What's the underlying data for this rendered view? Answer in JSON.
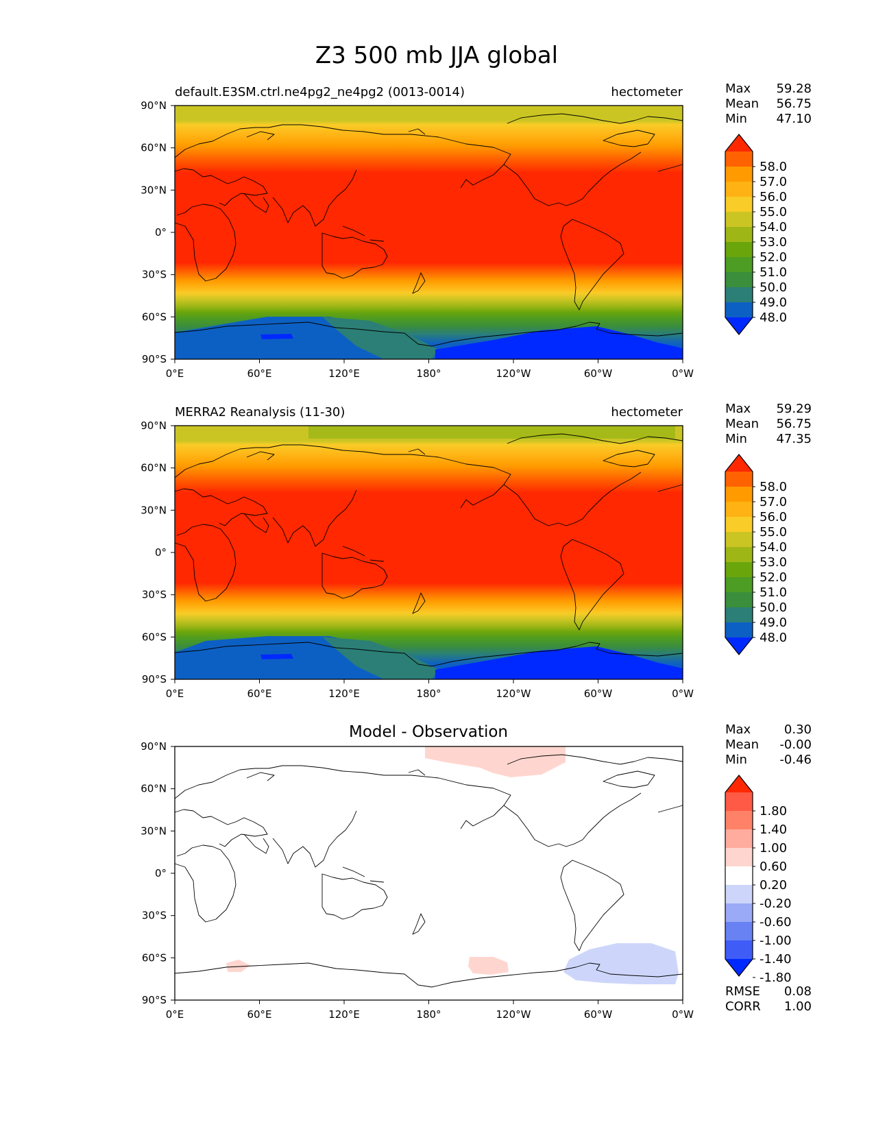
{
  "figure": {
    "title": "Z3 500 mb JJA global"
  },
  "axes": {
    "lat_ticks": [
      "90°N",
      "60°N",
      "30°N",
      "0°",
      "30°S",
      "60°S",
      "90°S"
    ],
    "lon_ticks": [
      "0°E",
      "60°E",
      "120°E",
      "180°",
      "120°W",
      "60°W",
      "0°W"
    ]
  },
  "panels": [
    {
      "id": "model",
      "title": "default.E3SM.ctrl.ne4pg2_ne4pg2 (0013-0014)",
      "units": "hectometer",
      "stats": [
        {
          "label": "Max",
          "value": "59.28"
        },
        {
          "label": "Mean",
          "value": "56.75"
        },
        {
          "label": "Min",
          "value": "47.10"
        }
      ],
      "extra_stats": [],
      "colorbar_labels": [
        "58.0",
        "57.0",
        "56.0",
        "55.0",
        "54.0",
        "53.0",
        "52.0",
        "51.0",
        "50.0",
        "49.0",
        "48.0"
      ],
      "colorbar_colors": [
        "#ff2800",
        "#ff6200",
        "#ff9a00",
        "#ffb213",
        "#f9cc27",
        "#cbc524",
        "#9fb716",
        "#6aa50c",
        "#4d9c23",
        "#3b8e3c",
        "#2b7f76",
        "#0d60c3",
        "#0029ff"
      ]
    },
    {
      "id": "obs",
      "title": "MERRA2 Reanalysis (11-30)",
      "units": "hectometer",
      "stats": [
        {
          "label": "Max",
          "value": "59.29"
        },
        {
          "label": "Mean",
          "value": "56.75"
        },
        {
          "label": "Min",
          "value": "47.35"
        }
      ],
      "extra_stats": [],
      "colorbar_labels": [
        "58.0",
        "57.0",
        "56.0",
        "55.0",
        "54.0",
        "53.0",
        "52.0",
        "51.0",
        "50.0",
        "49.0",
        "48.0"
      ],
      "colorbar_colors": [
        "#ff2800",
        "#ff6200",
        "#ff9a00",
        "#ffb213",
        "#f9cc27",
        "#cbc524",
        "#9fb716",
        "#6aa50c",
        "#4d9c23",
        "#3b8e3c",
        "#2b7f76",
        "#0d60c3",
        "#0029ff"
      ]
    },
    {
      "id": "diff",
      "title": "Model - Observation",
      "units": "",
      "stats": [
        {
          "label": "Max",
          "value": "0.30"
        },
        {
          "label": "Mean",
          "value": "-0.00"
        },
        {
          "label": "Min",
          "value": "-0.46"
        }
      ],
      "extra_stats": [
        {
          "label": "RMSE",
          "value": "0.08"
        },
        {
          "label": "CORR",
          "value": "1.00"
        }
      ],
      "colorbar_labels": [
        "1.80",
        "1.40",
        "1.00",
        "0.60",
        "0.20",
        "-0.20",
        "-0.60",
        "-1.00",
        "-1.40",
        "-1.80"
      ],
      "colorbar_colors": [
        "#ff2800",
        "#ff5a45",
        "#ff8268",
        "#ffab9e",
        "#ffd6cf",
        "#ffffff",
        "#cdd6fa",
        "#9aaaf6",
        "#6882f3",
        "#3f5cf7",
        "#0029ff"
      ]
    }
  ]
}
